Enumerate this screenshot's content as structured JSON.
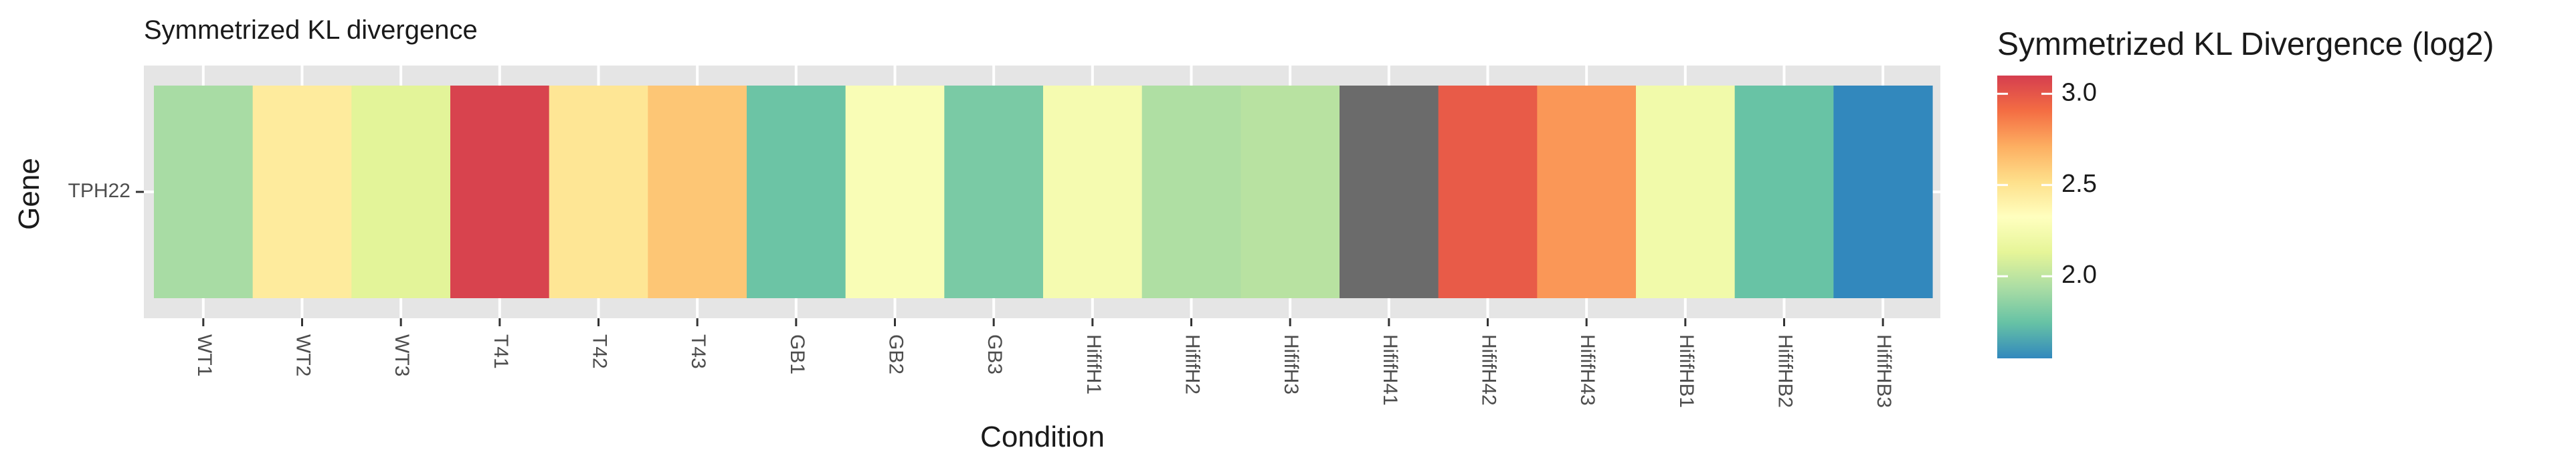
{
  "chart_data": {
    "type": "heatmap",
    "title": "Symmetrized KL divergence",
    "xlabel": "Condition",
    "ylabel": "Gene",
    "rows": [
      "TPH22"
    ],
    "columns": [
      "WT1",
      "WT2",
      "WT3",
      "T41",
      "T42",
      "T43",
      "GB1",
      "GB2",
      "GB3",
      "HififH1",
      "HififH2",
      "HififH3",
      "HififH41",
      "HififH42",
      "HififH43",
      "HififHB1",
      "HififHB2",
      "HififHB3"
    ],
    "values": [
      [
        1.93,
        2.45,
        2.12,
        3.08,
        2.48,
        2.62,
        1.76,
        2.28,
        1.8,
        2.25,
        1.95,
        1.98,
        null,
        2.98,
        2.78,
        2.22,
        1.75,
        1.55
      ]
    ],
    "missing_color": "#6b6b6b",
    "legend": {
      "title": "Symmetrized KL Divergence (log2)",
      "position": "right",
      "ticks": [
        2.0,
        2.5,
        3.0
      ],
      "tick_labels": [
        "2.0",
        "2.5",
        "3.0"
      ],
      "range": [
        1.55,
        3.1
      ],
      "palette": [
        "#3288bd",
        "#66c2a5",
        "#abdda4",
        "#e6f598",
        "#ffffbf",
        "#fee08b",
        "#fdae61",
        "#f46d43",
        "#d53e4f"
      ]
    },
    "grid": true,
    "panel_background": "#e5e5e5"
  }
}
